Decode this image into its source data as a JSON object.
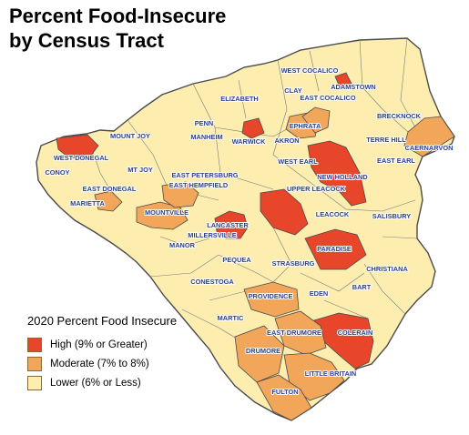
{
  "title": {
    "line1": "Percent Food-Insecure",
    "line2": "by Census Tract"
  },
  "legend": {
    "title": "2020 Percent Food Insecure",
    "items": [
      {
        "label": "High (9% or Greater)",
        "color": "#e8462a"
      },
      {
        "label": "Moderate (7% to 8%)",
        "color": "#f2a65a"
      },
      {
        "label": "Lower (6% or Less)",
        "color": "#fdeeb0"
      }
    ]
  },
  "colors": {
    "border": "#4a4a4a",
    "label": "#2c3f8f",
    "background": "#ffffff"
  },
  "municipalities": [
    {
      "id": "west-cocalico",
      "name": "WEST COCALICO",
      "category": "lower"
    },
    {
      "id": "adamstown",
      "name": "ADAMSTOWN",
      "category": "lower"
    },
    {
      "id": "east-cocalico",
      "name": "EAST COCALICO",
      "category": "lower"
    },
    {
      "id": "clay",
      "name": "CLAY",
      "category": "lower"
    },
    {
      "id": "elizabeth",
      "name": "ELIZABETH",
      "category": "lower"
    },
    {
      "id": "brecknock",
      "name": "BRECKNOCK",
      "category": "lower"
    },
    {
      "id": "penn",
      "name": "PENN",
      "category": "lower"
    },
    {
      "id": "manheim",
      "name": "MANHEIM",
      "category": "lower"
    },
    {
      "id": "ephrata",
      "name": "EPHRATA",
      "category": "moderate"
    },
    {
      "id": "terre-hill",
      "name": "TERRE HILL",
      "category": "lower"
    },
    {
      "id": "caernarvon",
      "name": "CAERNARVON",
      "category": "moderate"
    },
    {
      "id": "mount-joy",
      "name": "MOUNT JOY",
      "category": "lower"
    },
    {
      "id": "warwick",
      "name": "WARWICK",
      "category": "lower"
    },
    {
      "id": "akron",
      "name": "AKRON",
      "category": "lower"
    },
    {
      "id": "west-donegal",
      "name": "WEST DONEGAL",
      "category": "lower"
    },
    {
      "id": "west-earl",
      "name": "WEST EARL",
      "category": "lower"
    },
    {
      "id": "east-earl",
      "name": "EAST EARL",
      "category": "lower"
    },
    {
      "id": "new-holland",
      "name": "NEW HOLLAND",
      "category": "high"
    },
    {
      "id": "conoy",
      "name": "CONOY",
      "category": "lower"
    },
    {
      "id": "mt-joy",
      "name": "MT JOY",
      "category": "lower"
    },
    {
      "id": "east-petersburg",
      "name": "EAST PETERSBURG",
      "category": "lower"
    },
    {
      "id": "east-donegal",
      "name": "EAST DONEGAL",
      "category": "lower"
    },
    {
      "id": "east-hempfield",
      "name": "EAST HEMPFIELD",
      "category": "lower"
    },
    {
      "id": "upper-leacock",
      "name": "UPPER LEACOCK",
      "category": "lower"
    },
    {
      "id": "marietta",
      "name": "MARIETTA",
      "category": "moderate"
    },
    {
      "id": "mountville",
      "name": "MOUNTVILLE",
      "category": "moderate"
    },
    {
      "id": "leacock",
      "name": "LEACOCK",
      "category": "lower"
    },
    {
      "id": "salisbury",
      "name": "SALISBURY",
      "category": "lower"
    },
    {
      "id": "lancaster",
      "name": "LANCASTER",
      "category": "high"
    },
    {
      "id": "millersville",
      "name": "MILLERSVILLE",
      "category": "lower"
    },
    {
      "id": "paradise",
      "name": "PARADISE",
      "category": "high"
    },
    {
      "id": "manor",
      "name": "MANOR",
      "category": "lower"
    },
    {
      "id": "pequea",
      "name": "PEQUEA",
      "category": "lower"
    },
    {
      "id": "strasburg",
      "name": "STRASBURG",
      "category": "lower"
    },
    {
      "id": "christiana",
      "name": "CHRISTIANA",
      "category": "lower"
    },
    {
      "id": "conestoga",
      "name": "CONESTOGA",
      "category": "lower"
    },
    {
      "id": "bart",
      "name": "BART",
      "category": "lower"
    },
    {
      "id": "providence",
      "name": "PROVIDENCE",
      "category": "moderate"
    },
    {
      "id": "eden",
      "name": "EDEN",
      "category": "lower"
    },
    {
      "id": "martic",
      "name": "MARTIC",
      "category": "lower"
    },
    {
      "id": "colerain",
      "name": "COLERAIN",
      "category": "high"
    },
    {
      "id": "east-drumore",
      "name": "EAST DRUMORE",
      "category": "moderate"
    },
    {
      "id": "drumore",
      "name": "DRUMORE",
      "category": "moderate"
    },
    {
      "id": "little-britain",
      "name": "LITTLE BRITAIN",
      "category": "moderate"
    },
    {
      "id": "fulton",
      "name": "FULTON",
      "category": "moderate"
    }
  ]
}
